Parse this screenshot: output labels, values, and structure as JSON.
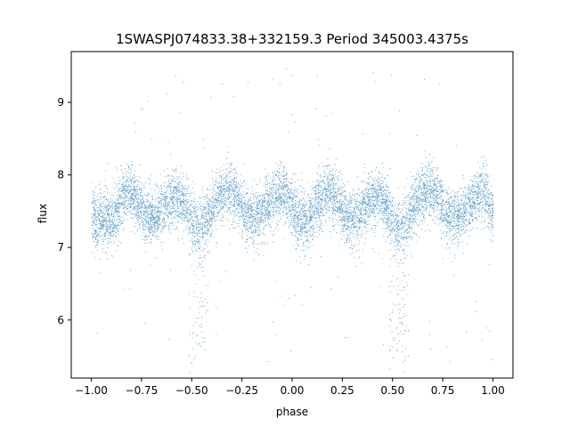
{
  "chart_data": {
    "type": "scatter",
    "title": "1SWASPJ074833.38+332159.3 Period 345003.4375s",
    "xlabel": "phase",
    "ylabel": "flux",
    "xlim": [
      -1.1,
      1.1
    ],
    "ylim": [
      5.2,
      9.7
    ],
    "x_ticks": [
      -1.0,
      -0.75,
      -0.5,
      -0.25,
      0.0,
      0.25,
      0.5,
      0.75,
      1.0
    ],
    "x_tick_labels": [
      "−1.00",
      "−0.75",
      "−0.50",
      "−0.25",
      "0.00",
      "0.25",
      "0.50",
      "0.75",
      "1.00"
    ],
    "y_ticks": [
      6,
      7,
      8,
      9
    ],
    "y_tick_labels": [
      "6",
      "7",
      "8",
      "9"
    ],
    "grid": false,
    "point_color": "#1f77b4",
    "series": [
      {
        "x_range": [
          -1.0,
          1.0
        ],
        "baseline_flux": 7.5,
        "band_halfwidth": 0.35,
        "profile": [
          {
            "phase": -1.0,
            "flux": 7.35
          },
          {
            "phase": -0.9,
            "flux": 7.4
          },
          {
            "phase": -0.82,
            "flux": 7.75
          },
          {
            "phase": -0.7,
            "flux": 7.4
          },
          {
            "phase": -0.58,
            "flux": 7.7
          },
          {
            "phase": -0.47,
            "flux": 7.3
          },
          {
            "phase": -0.32,
            "flux": 7.8
          },
          {
            "phase": -0.2,
            "flux": 7.4
          },
          {
            "phase": -0.05,
            "flux": 7.75
          },
          {
            "phase": 0.05,
            "flux": 7.35
          },
          {
            "phase": 0.18,
            "flux": 7.75
          },
          {
            "phase": 0.3,
            "flux": 7.4
          },
          {
            "phase": 0.42,
            "flux": 7.7
          },
          {
            "phase": 0.53,
            "flux": 7.3
          },
          {
            "phase": 0.68,
            "flux": 7.8
          },
          {
            "phase": 0.8,
            "flux": 7.4
          },
          {
            "phase": 0.95,
            "flux": 7.75
          },
          {
            "phase": 1.0,
            "flux": 7.5
          }
        ],
        "dip_phases": [
          -0.47,
          0.53
        ],
        "dip_min_flux": 5.4,
        "outlier_range": [
          5.4,
          9.5
        ]
      }
    ]
  }
}
